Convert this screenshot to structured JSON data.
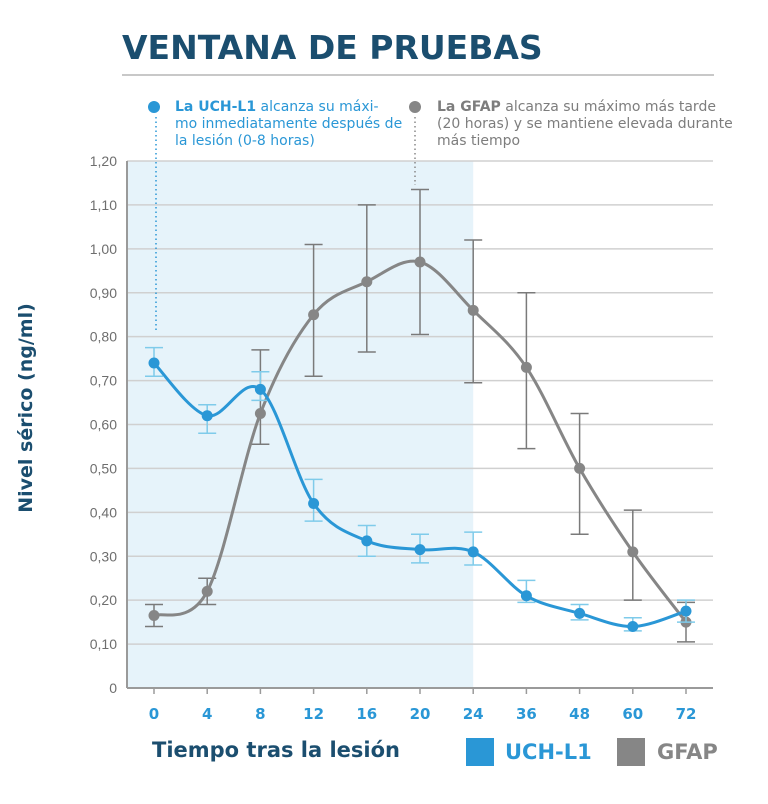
{
  "title": "VENTANA DE PRUEBAS",
  "annotations": [
    {
      "bold": "La UCH-L1",
      "text": " alcanza su máxi- mo inmediatamente después de la lesión (0-8 horas)",
      "color": "#2a97d6"
    },
    {
      "bold": "La GFAP",
      "text": " alcanza su máximo más tarde (20 horas) y se mantiene elevada durante más tiempo",
      "color": "#868686"
    }
  ],
  "chart_data": {
    "type": "line",
    "title": "VENTANA DE PRUEBAS",
    "xlabel": "Tiempo tras la lesión",
    "ylabel": "Nivel  sérico  (ng/ml)",
    "categories": [
      "0",
      "4",
      "8",
      "12",
      "16",
      "20",
      "24",
      "36",
      "48",
      "60",
      "72"
    ],
    "yticks": [
      "0",
      "0,10",
      "0,20",
      "0,30",
      "0,40",
      "0,50",
      "0,60",
      "0,70",
      "0,80",
      "0,90",
      "1,00",
      "1,10",
      "1,20"
    ],
    "ylim": [
      0,
      1.2
    ],
    "grid": true,
    "shaded_region": {
      "from": "0",
      "to": "24",
      "color": "#e6f3fa"
    },
    "legend_position": "bottom-right",
    "series": [
      {
        "name": "UCH-L1",
        "color": "#2a97d6",
        "errcolor": "#7fcbea",
        "values": [
          0.74,
          0.62,
          0.68,
          0.42,
          0.335,
          0.315,
          0.31,
          0.21,
          0.17,
          0.14,
          0.175
        ],
        "err_high": [
          0.775,
          0.645,
          0.72,
          0.475,
          0.37,
          0.35,
          0.355,
          0.245,
          0.19,
          0.16,
          0.2
        ],
        "err_low": [
          0.71,
          0.58,
          0.655,
          0.38,
          0.3,
          0.285,
          0.28,
          0.195,
          0.155,
          0.13,
          0.15
        ]
      },
      {
        "name": "GFAP",
        "color": "#868686",
        "errcolor": "#7a7a7a",
        "values": [
          0.165,
          0.22,
          0.625,
          0.85,
          0.925,
          0.97,
          0.86,
          0.73,
          0.5,
          0.31,
          0.15
        ],
        "err_high": [
          0.19,
          0.25,
          0.77,
          1.01,
          1.1,
          1.135,
          1.02,
          0.9,
          0.625,
          0.405,
          0.195
        ],
        "err_low": [
          0.14,
          0.19,
          0.555,
          0.71,
          0.765,
          0.805,
          0.695,
          0.545,
          0.35,
          0.2,
          0.105
        ]
      }
    ]
  }
}
